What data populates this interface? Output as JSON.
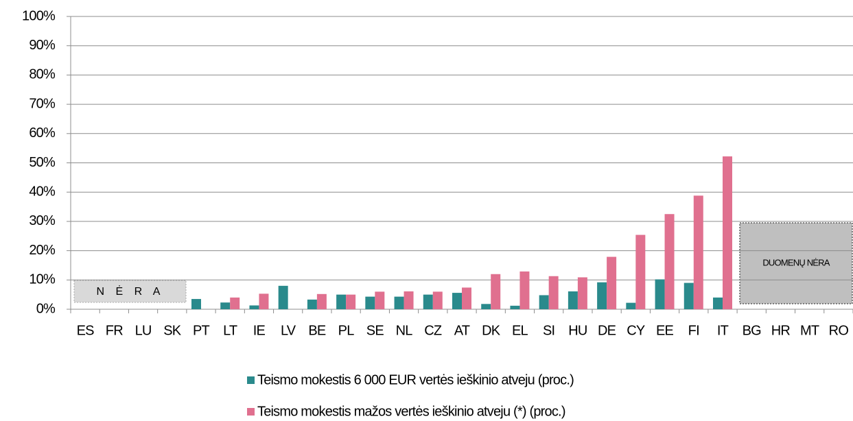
{
  "chart_data": {
    "type": "bar",
    "categories": [
      "ES",
      "FR",
      "LU",
      "SK",
      "PT",
      "LT",
      "IE",
      "LV",
      "BE",
      "PL",
      "SE",
      "NL",
      "CZ",
      "AT",
      "DK",
      "EL",
      "SI",
      "HU",
      "DE",
      "CY",
      "EE",
      "FI",
      "IT",
      "BG",
      "HR",
      "MT",
      "RO"
    ],
    "series": [
      {
        "name": "Teismo mokestis 6 000 EUR vertės ieškinio atveju (proc.)",
        "color": "#2a8a8c",
        "values": [
          null,
          null,
          null,
          null,
          3.5,
          2.3,
          1.3,
          8,
          3.3,
          5,
          4.3,
          4.3,
          5,
          5.6,
          1.8,
          1.2,
          4.8,
          6.1,
          9.2,
          2.2,
          10.2,
          9,
          4,
          null,
          null,
          null,
          null
        ]
      },
      {
        "name": "Teismo mokestis mažos vertės ieškinio atveju (*) (proc.)",
        "color": "#e0708f",
        "values": [
          null,
          null,
          null,
          null,
          null,
          4,
          5.3,
          null,
          5.2,
          5,
          6,
          6.1,
          6,
          7.4,
          12,
          12.9,
          11.3,
          10.9,
          17.9,
          25.4,
          32.5,
          38.8,
          52.2,
          null,
          null,
          null,
          null
        ]
      }
    ],
    "annotations": [
      "N Ė R A",
      "DUOMENŲ NĖRA"
    ],
    "ylim": [
      0,
      100
    ],
    "yticks": [
      {
        "value": 0,
        "label": "0%"
      },
      {
        "value": 10,
        "label": "10%"
      },
      {
        "value": 20,
        "label": "20%"
      },
      {
        "value": 30,
        "label": "30%"
      },
      {
        "value": 40,
        "label": "40%"
      },
      {
        "value": 50,
        "label": "50%"
      },
      {
        "value": 60,
        "label": "60%"
      },
      {
        "value": 70,
        "label": "70%"
      },
      {
        "value": 80,
        "label": "80%"
      },
      {
        "value": 90,
        "label": "90%"
      },
      {
        "value": 100,
        "label": "100%"
      }
    ],
    "grid": true
  }
}
